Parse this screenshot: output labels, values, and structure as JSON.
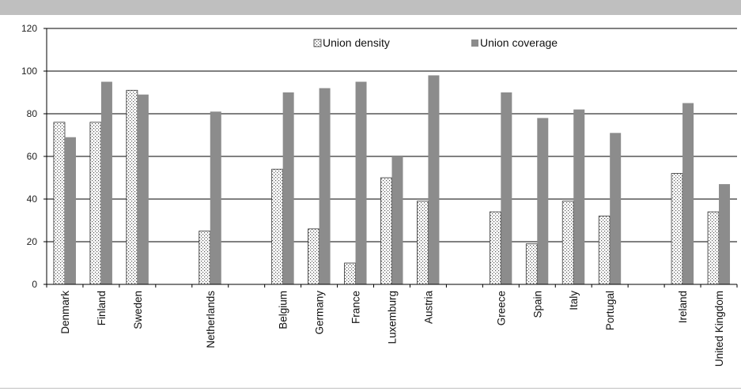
{
  "chart_data": {
    "type": "bar",
    "title": "",
    "xlabel": "",
    "ylabel": "",
    "ylim": [
      0,
      120
    ],
    "yticks": [
      0,
      20,
      40,
      60,
      80,
      100,
      120
    ],
    "grid": true,
    "legend": "top-center",
    "categories": [
      "Denmark",
      "Finland",
      "Sweden",
      "",
      "Netherlands",
      "",
      "Belgium",
      "Germany",
      "France",
      "Luxemburg",
      "Austria",
      "",
      "Greece",
      "Spain",
      "Italy",
      "Portugal",
      "",
      "Ireland",
      "United Kingdom"
    ],
    "series": [
      {
        "name": "Union density",
        "color": "#ffffff",
        "pattern": "dotted",
        "values": [
          76,
          76,
          91,
          null,
          25,
          null,
          54,
          26,
          10,
          50,
          39,
          null,
          34,
          19,
          39,
          32,
          null,
          52,
          34
        ]
      },
      {
        "name": "Union coverage",
        "color": "#8c8c8c",
        "pattern": "solid",
        "values": [
          69,
          95,
          89,
          null,
          81,
          null,
          90,
          92,
          95,
          60,
          98,
          null,
          90,
          78,
          82,
          71,
          null,
          85,
          47
        ]
      }
    ]
  }
}
